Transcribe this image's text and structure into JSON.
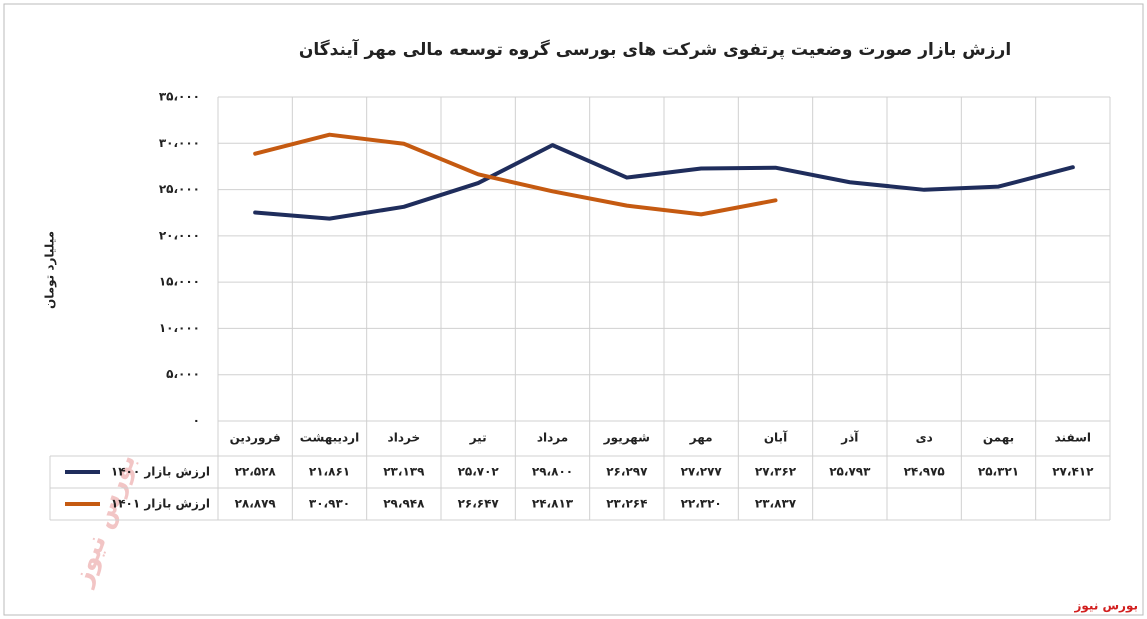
{
  "chart_data": {
    "type": "line",
    "title": "ارزش بازار صورت وضعیت پرتفوی شرکت های بورسی گروه توسعه مالی مهر آیندگان",
    "ylabel": "میلیارد تومان",
    "source": "بورس نیوز",
    "watermark": "بورس نیوز",
    "categories": [
      "فروردین",
      "اردیبهشت",
      "خرداد",
      "تیر",
      "مرداد",
      "شهریور",
      "مهر",
      "آبان",
      "آذر",
      "دی",
      "بهمن",
      "اسفند"
    ],
    "series": [
      {
        "name": "ارزش بازار ۱۴۰۰",
        "color": "#1f2d5c",
        "values": [
          22528,
          21861,
          23139,
          25702,
          29800,
          26297,
          27277,
          27362,
          25793,
          24975,
          25321,
          27412
        ],
        "value_labels": [
          "۲۲،۵۲۸",
          "۲۱،۸۶۱",
          "۲۳،۱۳۹",
          "۲۵،۷۰۲",
          "۲۹،۸۰۰",
          "۲۶،۲۹۷",
          "۲۷،۲۷۷",
          "۲۷،۳۶۲",
          "۲۵،۷۹۳",
          "۲۴،۹۷۵",
          "۲۵،۳۲۱",
          "۲۷،۴۱۲"
        ]
      },
      {
        "name": "ارزش بازار ۱۴۰۱",
        "color": "#c55a11",
        "values": [
          28879,
          30930,
          29948,
          26647,
          24813,
          23264,
          22320,
          23837,
          null,
          null,
          null,
          null
        ],
        "value_labels": [
          "۲۸،۸۷۹",
          "۳۰،۹۳۰",
          "۲۹،۹۴۸",
          "۲۶،۶۴۷",
          "۲۴،۸۱۳",
          "۲۳،۲۶۴",
          "۲۲،۳۲۰",
          "۲۳،۸۳۷",
          null,
          null,
          null,
          null
        ]
      }
    ],
    "ylim": [
      0,
      35000
    ],
    "yticks": [
      {
        "value": 0,
        "label": "۰"
      },
      {
        "value": 5000,
        "label": "۵،۰۰۰"
      },
      {
        "value": 10000,
        "label": "۱۰،۰۰۰"
      },
      {
        "value": 15000,
        "label": "۱۵،۰۰۰"
      },
      {
        "value": 20000,
        "label": "۲۰،۰۰۰"
      },
      {
        "value": 25000,
        "label": "۲۵،۰۰۰"
      },
      {
        "value": 30000,
        "label": "۳۰،۰۰۰"
      },
      {
        "value": 35000,
        "label": "۳۵،۰۰۰"
      }
    ],
    "grid": true
  }
}
